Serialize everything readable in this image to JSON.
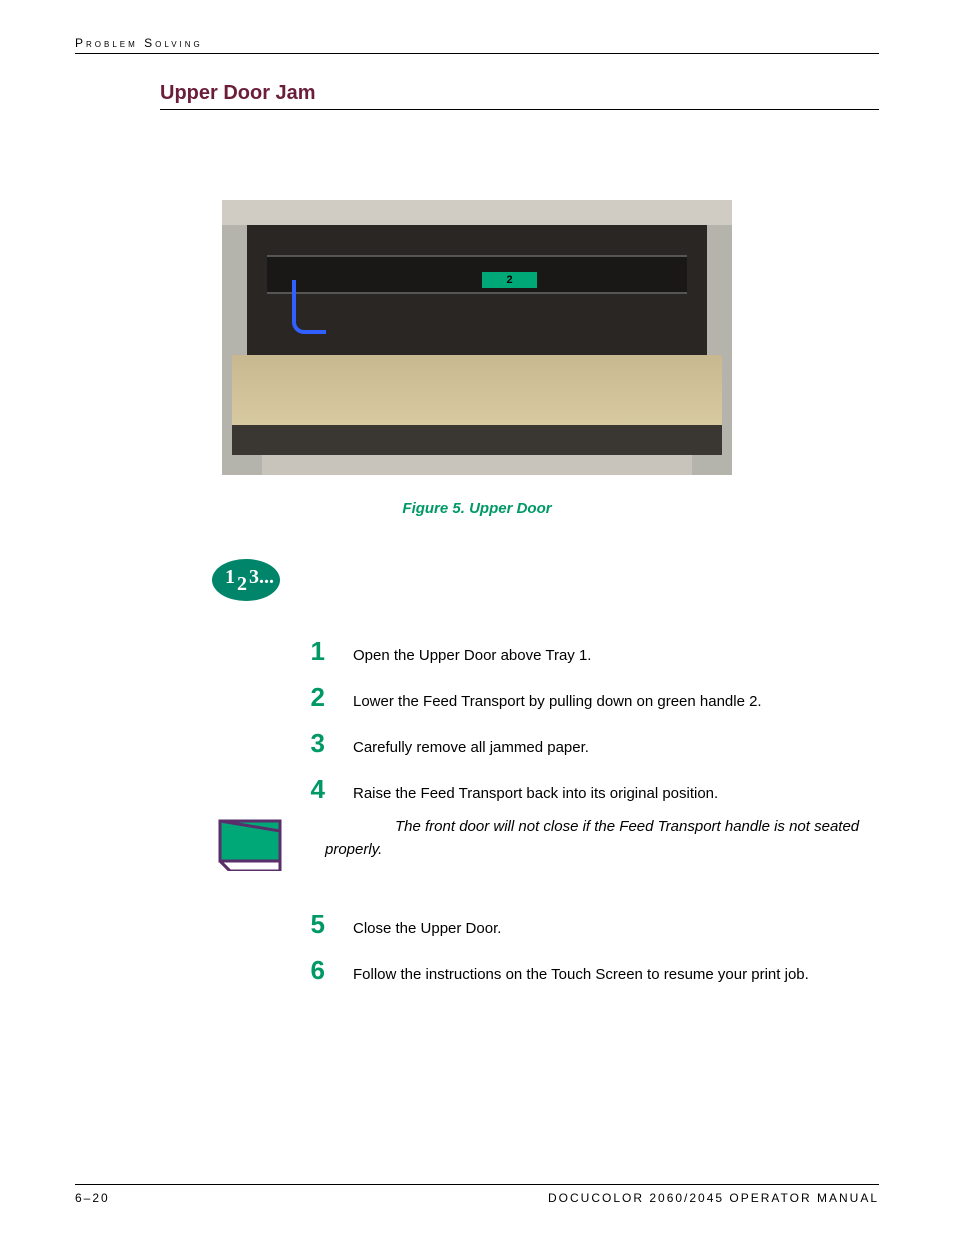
{
  "header": {
    "running_title": "Problem Solving",
    "section_title": "Upper Door Jam",
    "section_title_color": "#6b1e3a"
  },
  "figure": {
    "caption": "Figure 5. Upper Door",
    "caption_color": "#009966",
    "handle_label": "2"
  },
  "steps_icon": {
    "bg_color": "#00856a",
    "text": "1",
    "sub": "2",
    "sup": "3...",
    "text_color": "#ffffff"
  },
  "steps": [
    {
      "num": "1",
      "text": "Open the Upper Door above Tray 1."
    },
    {
      "num": "2",
      "text": "Lower the Feed Transport by pulling down on green handle 2."
    },
    {
      "num": "3",
      "text": "Carefully remove all jammed paper."
    },
    {
      "num": "4",
      "text": "Raise the Feed Transport back into its original position."
    }
  ],
  "note": {
    "icon_fill": "#00a878",
    "icon_stroke": "#5a2d6b",
    "text_lead": "The front door will not close if the Feed Transport handle is not seated",
    "text_tail": "properly."
  },
  "steps2": [
    {
      "num": "5",
      "text": "Close the Upper Door."
    },
    {
      "num": "6",
      "text": "Follow the instructions on the Touch Screen to resume your print job."
    }
  ],
  "step_num_color": "#009966",
  "footer": {
    "page": "6–20",
    "manual": "DOCUCOLOR 2060/2045 OPERATOR MANUAL"
  }
}
